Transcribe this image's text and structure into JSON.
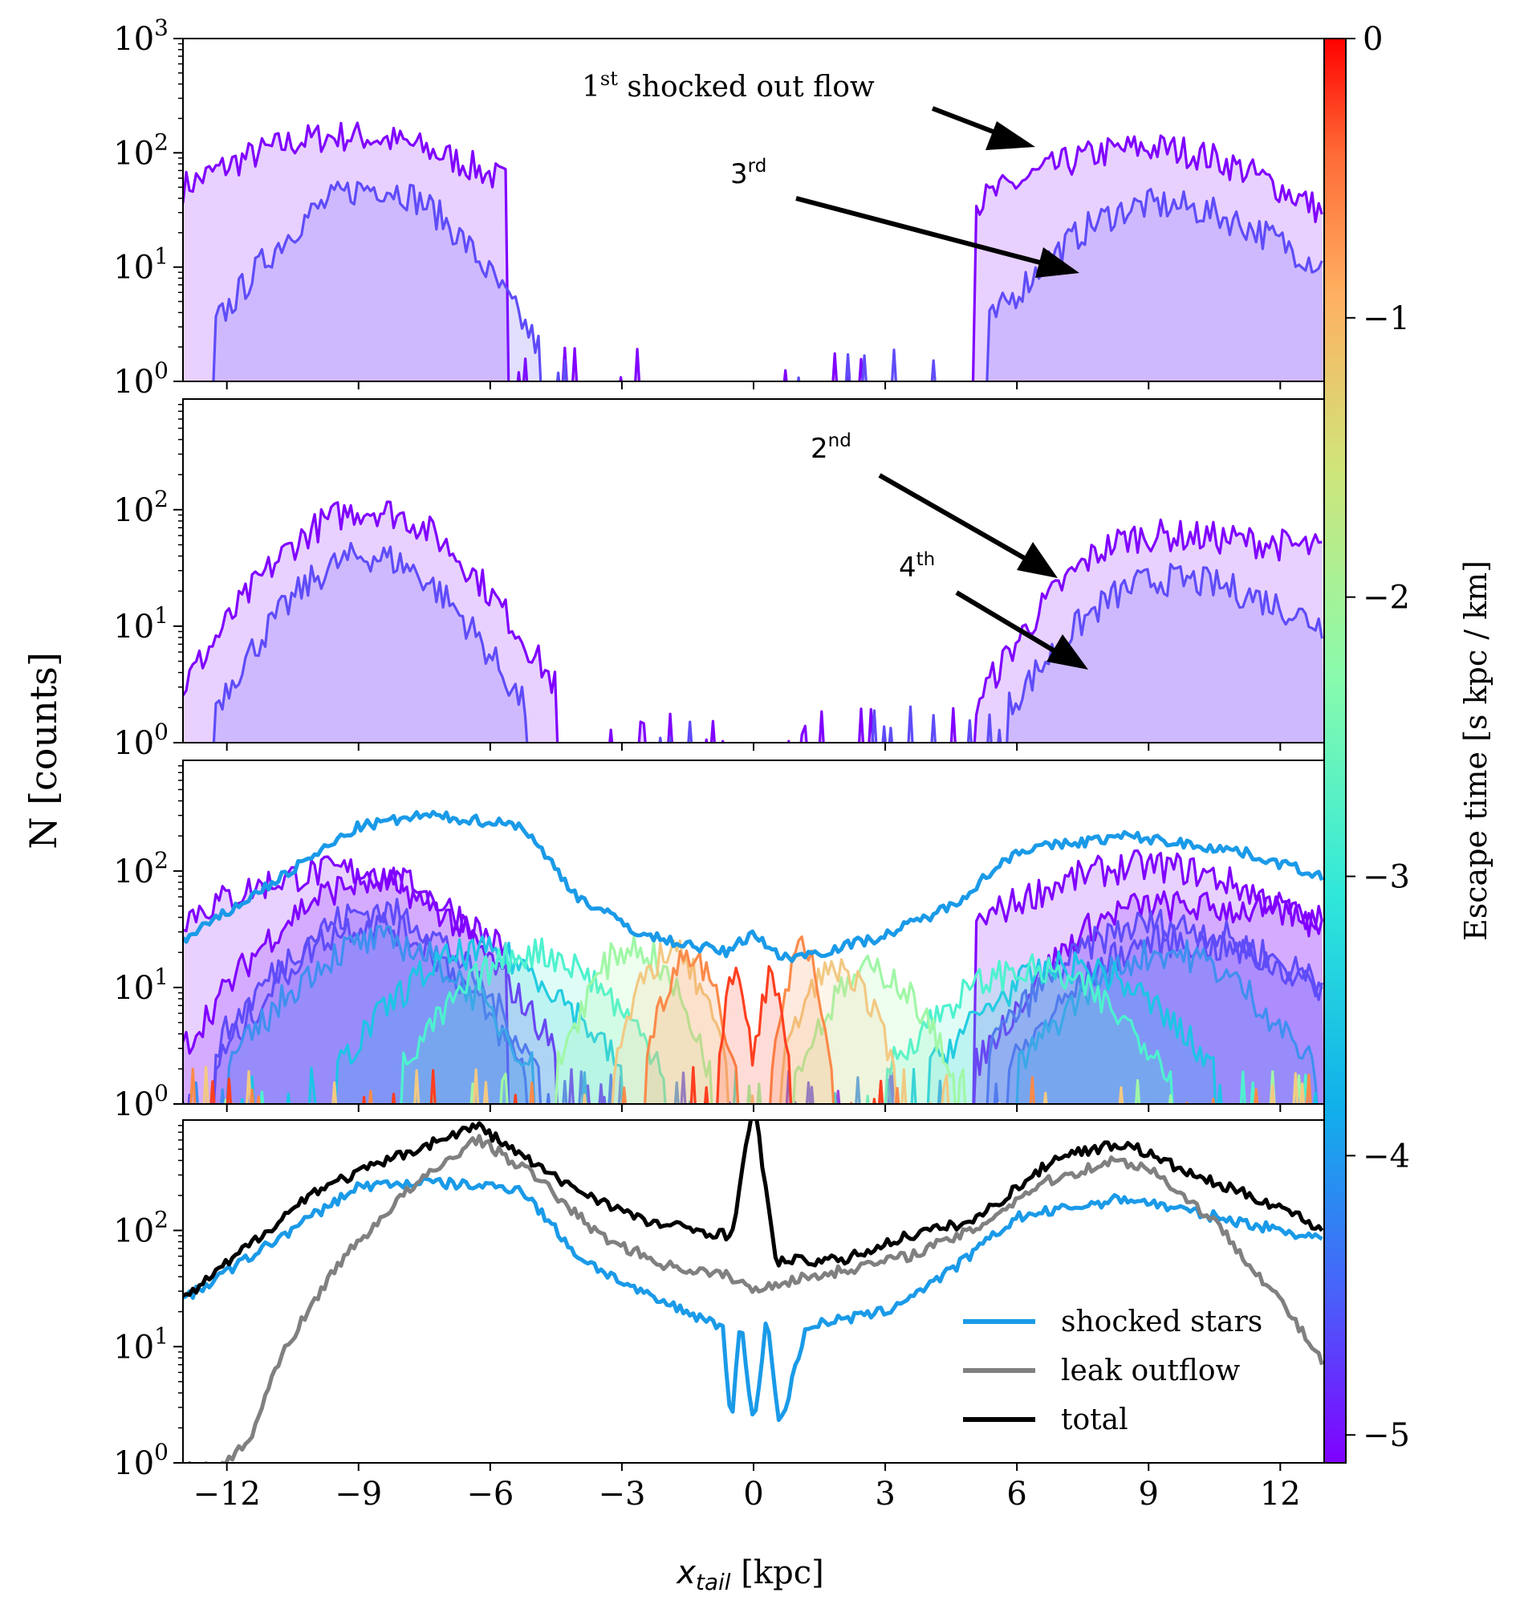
{
  "chart_data": {
    "type": "line",
    "ylabel": "N [counts]",
    "xlabel_main": "x",
    "xlabel_sub": "tail",
    "xlabel_unit": " [kpc]",
    "x_ticks": [
      "−12",
      "−9",
      "−6",
      "−3",
      "0",
      "3",
      "6",
      "9",
      "12"
    ],
    "x_tick_values": [
      -12,
      -9,
      -6,
      -3,
      0,
      3,
      6,
      9,
      12
    ],
    "xlim": [
      -13,
      13
    ],
    "y_scale": "log",
    "colorbar": {
      "label": "Escape time [s kpc / km]",
      "colormap": "rainbow",
      "range": [
        -5.1,
        0
      ],
      "ticks": [
        "0",
        "−1",
        "−2",
        "−3",
        "−4",
        "−5"
      ],
      "tick_values": [
        0,
        -1,
        -2,
        -3,
        -4,
        -5
      ]
    },
    "panels": [
      {
        "id": "p1",
        "ylim_exp": [
          0,
          3
        ],
        "y_ticks": [
          {
            "base": "10",
            "exp": "0"
          },
          {
            "base": "10",
            "exp": "1"
          },
          {
            "base": "10",
            "exp": "2"
          },
          {
            "base": "10",
            "exp": "3"
          }
        ],
        "series": [
          {
            "color": "#8000ff",
            "fill": true,
            "lobes": [
              [
                -13,
                -5.6,
                50,
                140,
                55
              ],
              [
                5.0,
                13,
                35,
                110,
                30
              ]
            ]
          },
          {
            "color": "#5f4cf8",
            "fill": true,
            "lobes": [
              [
                -12.3,
                -4.9,
                3,
                50,
                2
              ],
              [
                5.3,
                13,
                3,
                35,
                10
              ]
            ]
          }
        ],
        "annotations": [
          {
            "base": "1",
            "sup": "st",
            "rest": " shocked out flow"
          },
          {
            "base": "3",
            "sup": "rd",
            "rest": ""
          }
        ]
      },
      {
        "id": "p2",
        "ylim_exp": [
          0,
          2.95
        ],
        "y_ticks": [
          {
            "base": "10",
            "exp": "0"
          },
          {
            "base": "10",
            "exp": "1"
          },
          {
            "base": "10",
            "exp": "2"
          }
        ],
        "series": [
          {
            "color": "#8000ff",
            "fill": true,
            "lobes": [
              [
                -13,
                -4.5,
                3,
                100,
                3
              ],
              [
                5.0,
                13,
                2,
                60,
                45
              ]
            ]
          },
          {
            "color": "#5f4cf8",
            "fill": true,
            "lobes": [
              [
                -12.3,
                -5.2,
                2,
                40,
                2
              ],
              [
                5.8,
                13,
                2,
                25,
                10
              ]
            ]
          }
        ],
        "annotations": [
          {
            "base": "2",
            "sup": "nd",
            "rest": ""
          },
          {
            "base": "4",
            "sup": "th",
            "rest": ""
          }
        ]
      },
      {
        "id": "p3",
        "ylim_exp": [
          0,
          2.95
        ],
        "y_ticks": [
          {
            "base": "10",
            "exp": "0"
          },
          {
            "base": "10",
            "exp": "1"
          },
          {
            "base": "10",
            "exp": "2"
          }
        ],
        "series": [
          {
            "color": "#8000ff",
            "fill": true,
            "lobes": [
              [
                -13,
                -5.6,
                40,
                100,
                20
              ],
              [
                5.0,
                13,
                35,
                110,
                30
              ]
            ]
          },
          {
            "color": "#8000ff",
            "fill": true,
            "lobes": [
              [
                -13,
                -4.5,
                3,
                80,
                3
              ],
              [
                5.0,
                13,
                2,
                50,
                40
              ]
            ]
          },
          {
            "color": "#5f4cf8",
            "fill": true,
            "lobes": [
              [
                -12.3,
                -4.9,
                3,
                45,
                2
              ],
              [
                5.3,
                13,
                3,
                35,
                10
              ]
            ]
          },
          {
            "color": "#5f4cf8",
            "fill": true,
            "lobes": [
              [
                -12.3,
                -5.2,
                2,
                35,
                2
              ],
              [
                5.8,
                13,
                2,
                25,
                10
              ]
            ]
          },
          {
            "color": "#3f8ff0",
            "fill": true,
            "lobes": [
              [
                -12.0,
                -5.0,
                2,
                25,
                2
              ],
              [
                6.0,
                12.8,
                2,
                20,
                2
              ]
            ]
          },
          {
            "color": "#1cc4e6",
            "fill": true,
            "lobes": [
              [
                -9.5,
                -3.0,
                2,
                20,
                2
              ],
              [
                4.0,
                10.5,
                2,
                15,
                2
              ]
            ]
          },
          {
            "color": "#4ef2cf",
            "fill": true,
            "lobes": [
              [
                -8.0,
                -2.0,
                2,
                20,
                2
              ],
              [
                3.0,
                9.5,
                2,
                14,
                2
              ]
            ]
          },
          {
            "color": "#a0f7a6",
            "fill": true,
            "lobes": [
              [
                -4.5,
                -1.0,
                2,
                22,
                2
              ],
              [
                1.0,
                4.5,
                2,
                14,
                2
              ]
            ]
          },
          {
            "color": "#f2c983",
            "fill": true,
            "lobes": [
              [
                -3.2,
                -0.6,
                2,
                20,
                2
              ],
              [
                0.6,
                3.2,
                2,
                15,
                2
              ]
            ]
          },
          {
            "color": "#fb8a4a",
            "fill": true,
            "lobes": [
              [
                -2.5,
                -0.4,
                2,
                20,
                2
              ],
              [
                0.4,
                1.8,
                2,
                20,
                2
              ]
            ]
          },
          {
            "color": "#ff3f20",
            "fill": true,
            "lobes": [
              [
                -0.8,
                0.0,
                2,
                15,
                2
              ],
              [
                0.0,
                0.8,
                2,
                12,
                2
              ]
            ]
          },
          {
            "color": "#1a9ae8",
            "fill": false,
            "curve": [
              [
                -13,
                25
              ],
              [
                -9,
                240
              ],
              [
                -7.5,
                300
              ],
              [
                -5.3,
                250
              ],
              [
                -4.0,
                60
              ],
              [
                -2.5,
                28
              ],
              [
                -0.6,
                20
              ],
              [
                0.0,
                30
              ],
              [
                0.6,
                18
              ],
              [
                1.5,
                20
              ],
              [
                3.0,
                28
              ],
              [
                4.5,
                50
              ],
              [
                6.0,
                150
              ],
              [
                8.5,
                200
              ],
              [
                11,
                150
              ],
              [
                13,
                90
              ]
            ]
          }
        ],
        "annotations": []
      },
      {
        "id": "p4",
        "ylim_exp": [
          0,
          2.95
        ],
        "y_ticks": [
          {
            "base": "10",
            "exp": "0"
          },
          {
            "base": "10",
            "exp": "1"
          },
          {
            "base": "10",
            "exp": "2"
          }
        ],
        "series": [
          {
            "color": "#1a9ae8",
            "fill": false,
            "curve": [
              [
                -13,
                25
              ],
              [
                -9,
                240
              ],
              [
                -7.5,
                260
              ],
              [
                -5.3,
                230
              ],
              [
                -4.0,
                60
              ],
              [
                -2.5,
                28
              ],
              [
                -0.7,
                15
              ],
              [
                -0.5,
                2
              ],
              [
                -0.3,
                18
              ],
              [
                0.0,
                2
              ],
              [
                0.3,
                18
              ],
              [
                0.6,
                2
              ],
              [
                1.2,
                15
              ],
              [
                3.0,
                20
              ],
              [
                4.5,
                45
              ],
              [
                6.0,
                130
              ],
              [
                8.5,
                190
              ],
              [
                11,
                120
              ],
              [
                13,
                85
              ]
            ]
          },
          {
            "color": "#808080",
            "fill": false,
            "curve": [
              [
                -12.2,
                0.9
              ],
              [
                -11.5,
                1.5
              ],
              [
                -10.8,
                8
              ],
              [
                -9.5,
                50
              ],
              [
                -8.0,
                200
              ],
              [
                -6.3,
                620
              ],
              [
                -5.0,
                300
              ],
              [
                -3.5,
                90
              ],
              [
                -2.0,
                50
              ],
              [
                -0.5,
                40
              ],
              [
                0.0,
                30
              ],
              [
                0.5,
                35
              ],
              [
                2.0,
                45
              ],
              [
                3.5,
                60
              ],
              [
                5.0,
                100
              ],
              [
                6.5,
                250
              ],
              [
                8.2,
                400
              ],
              [
                9.0,
                350
              ],
              [
                10.5,
                120
              ],
              [
                12.0,
                25
              ],
              [
                13,
                7
              ]
            ]
          },
          {
            "color": "#000000",
            "fill": false,
            "curve": [
              [
                -13,
                25
              ],
              [
                -10,
                220
              ],
              [
                -8.0,
                450
              ],
              [
                -6.3,
                800
              ],
              [
                -4.5,
                280
              ],
              [
                -2.5,
                120
              ],
              [
                -0.5,
                90
              ],
              [
                -0.05,
                1000
              ],
              [
                0.05,
                1000
              ],
              [
                0.5,
                55
              ],
              [
                2.0,
                55
              ],
              [
                3.5,
                90
              ],
              [
                5.0,
                120
              ],
              [
                7.0,
                450
              ],
              [
                8.5,
                560
              ],
              [
                10,
                300
              ],
              [
                12,
                160
              ],
              [
                13,
                100
              ]
            ]
          }
        ],
        "legend": [
          {
            "label": "shocked stars",
            "color": "#1a9ae8"
          },
          {
            "label": "leak outflow",
            "color": "#808080"
          },
          {
            "label": "total",
            "color": "#000000"
          }
        ],
        "legend_position": "lower-right",
        "annotations": []
      }
    ]
  }
}
